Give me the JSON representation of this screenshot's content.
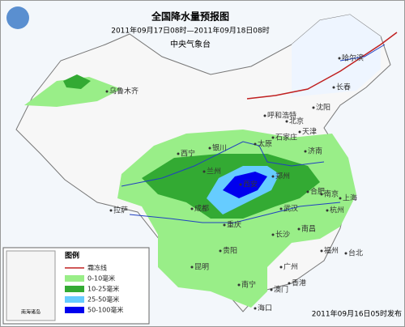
{
  "header": {
    "title": "全国降水量预报图",
    "period": "2011年09月17日08时—2011年09月18日08时",
    "agency": "中央气象台"
  },
  "cities": [
    "乌鲁木齐",
    "哈尔滨",
    "长春",
    "沈阳",
    "呼和浩特",
    "北京",
    "天津",
    "石家庄",
    "太原",
    "银川",
    "西宁",
    "兰州",
    "济南",
    "郑州",
    "西安",
    "合肥",
    "南京",
    "上海",
    "成都",
    "武汉",
    "杭州",
    "拉萨",
    "重庆",
    "长沙",
    "南昌",
    "福州",
    "贵阳",
    "昆明",
    "广州",
    "南宁",
    "台北",
    "海口",
    "香港",
    "澳门"
  ],
  "inset": {
    "label": "南海诸岛"
  },
  "legend": {
    "title": "图例",
    "items": [
      "霜冻线",
      "0-10毫米",
      "10-25毫米",
      "25-50毫米",
      "50-100毫米"
    ]
  },
  "footer": {
    "issued": "2011年09月16日05时发布"
  }
}
